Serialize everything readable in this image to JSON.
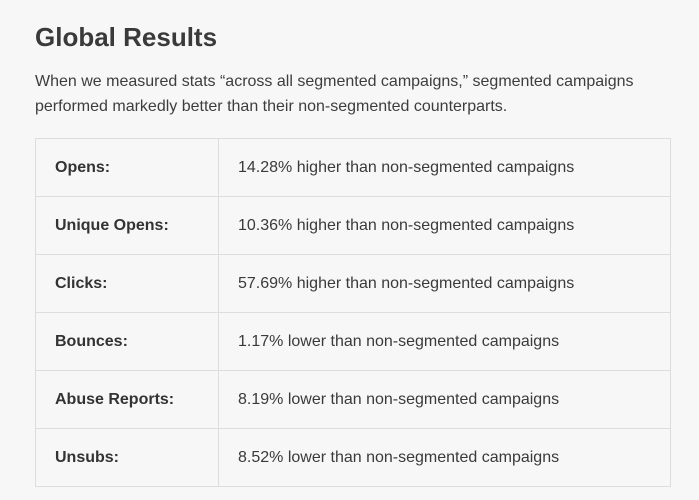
{
  "section": {
    "title": "Global Results",
    "intro": "When we measured stats “across all segmented campaigns,” segmented campaigns performed markedly better than their non-segmented counterparts."
  },
  "results_table": {
    "rows": [
      {
        "metric": "Opens:",
        "result": "14.28% higher than non-segmented campaigns"
      },
      {
        "metric": "Unique Opens:",
        "result": "10.36% higher than non-segmented campaigns"
      },
      {
        "metric": "Clicks:",
        "result": "57.69% higher than non-segmented campaigns"
      },
      {
        "metric": "Bounces:",
        "result": "1.17% lower than non-segmented campaigns"
      },
      {
        "metric": "Abuse Reports:",
        "result": "8.19% lower than non-segmented campaigns"
      },
      {
        "metric": "Unsubs:",
        "result": "8.52% lower than non-segmented campaigns"
      }
    ]
  }
}
